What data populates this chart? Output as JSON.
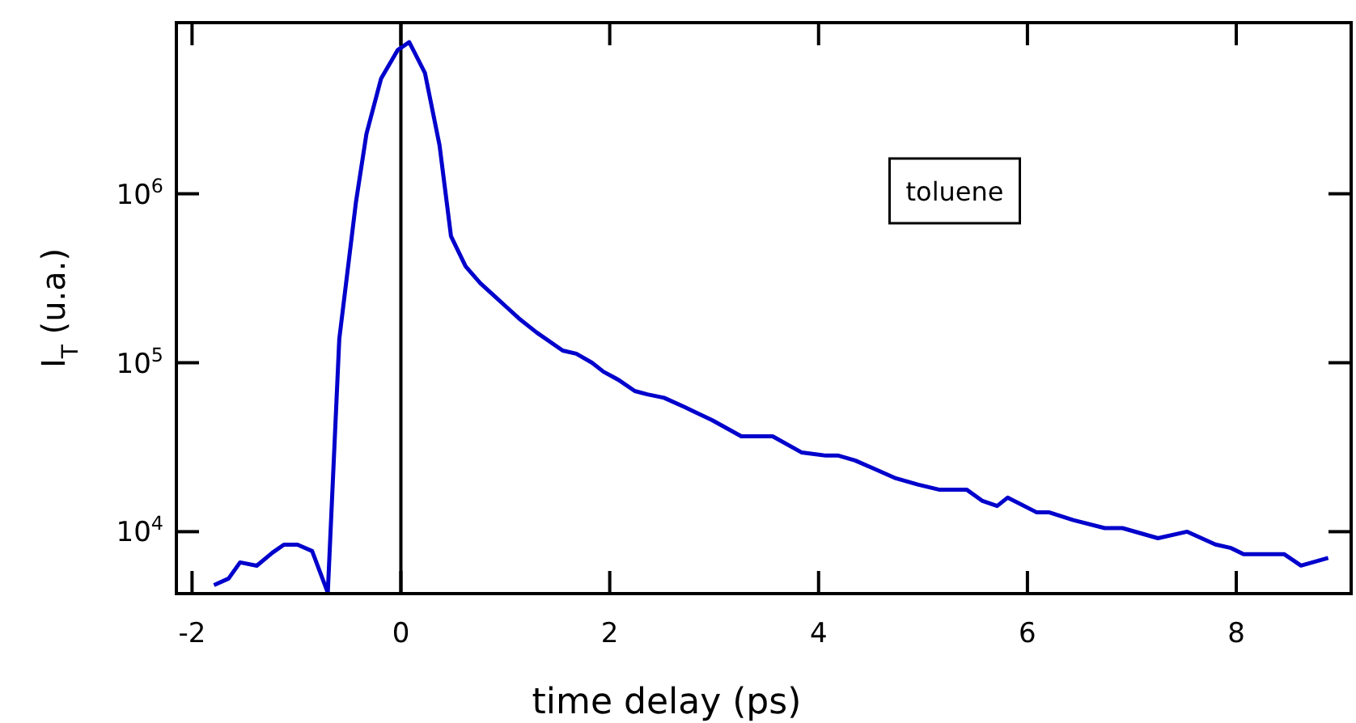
{
  "chart_data": {
    "type": "line",
    "xlabel": "time delay (ps)",
    "ylabel": "I$_{T}$ (u.a.)",
    "log": "y",
    "xlim": [
      -2.15,
      9.1
    ],
    "ylim": [
      4300,
      10300000
    ],
    "xticks": [
      -2,
      0,
      2,
      4,
      6,
      8
    ],
    "yticks": [
      {
        "value": 10000,
        "label": "10$^{4}$"
      },
      {
        "value": 100000,
        "label": "10$^{5}$"
      },
      {
        "value": 1000000,
        "label": "10$^{6}$"
      }
    ],
    "grid": false,
    "marker": "none",
    "line_style": "solid",
    "ref_lines": [
      {
        "axis": "x",
        "value": 0,
        "color": "#000000"
      }
    ],
    "annotations": [
      "toluene"
    ],
    "series": [
      {
        "color": "#0000cc",
        "x": [
          -1.79,
          -1.65,
          -1.54,
          -1.38,
          -1.23,
          -1.12,
          -0.99,
          -0.85,
          -0.7,
          -0.59,
          -0.43,
          -0.33,
          -0.19,
          -0.03,
          0.08,
          0.23,
          0.37,
          0.48,
          0.62,
          0.76,
          0.89,
          1.01,
          1.13,
          1.3,
          1.55,
          1.68,
          1.83,
          1.94,
          2.08,
          2.24,
          2.36,
          2.52,
          2.72,
          2.98,
          3.26,
          3.56,
          3.84,
          4.07,
          4.19,
          4.35,
          4.53,
          4.74,
          4.95,
          5.16,
          5.42,
          5.57,
          5.71,
          5.81,
          6.09,
          6.21,
          6.44,
          6.74,
          6.91,
          7.25,
          7.53,
          7.8,
          7.95,
          8.07,
          8.46,
          8.62,
          8.88
        ],
        "values": [
          4830,
          5280,
          6580,
          6290,
          7510,
          8380,
          8380,
          7680,
          4350,
          138000,
          896000,
          2260000,
          4800000,
          7100000,
          7900000,
          5200000,
          1940000,
          560000,
          372000,
          296000,
          250000,
          214000,
          183000,
          151000,
          118000,
          113000,
          100000,
          88500,
          79400,
          68000,
          65000,
          62000,
          54500,
          45700,
          36700,
          36700,
          29400,
          28200,
          28200,
          26400,
          23600,
          20700,
          19000,
          17700,
          17700,
          15200,
          14200,
          15900,
          13000,
          13000,
          11700,
          10500,
          10500,
          9150,
          10000,
          8400,
          8000,
          7350,
          7350,
          6300,
          7000
        ]
      }
    ]
  }
}
